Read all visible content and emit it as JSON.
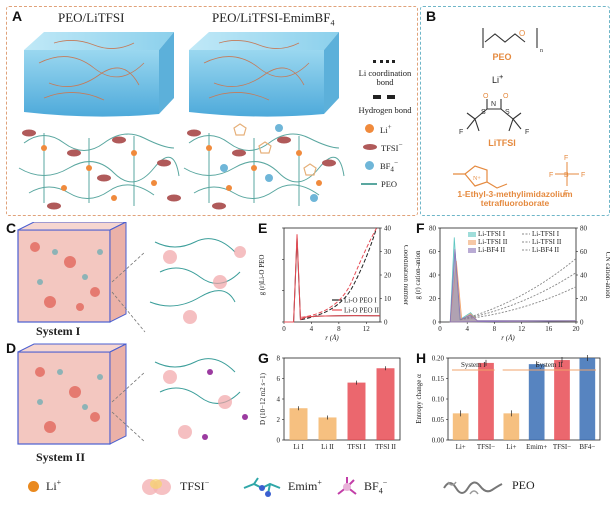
{
  "panels": {
    "A": {
      "label": "A",
      "left_title": "PEO/LiTFSI",
      "right_title": "PEO/LiTFSI-EmimBF",
      "right_title_sub": "4",
      "legend": {
        "coord": "Li coordination bond",
        "hbond": "Hydrogen bond",
        "li": "Li",
        "li_sup": "+",
        "tfsi": "TFSI",
        "tfsi_sup": "−",
        "bf4": "BF",
        "bf4_sub": "4",
        "bf4_sup": "−",
        "peo": "PEO"
      }
    },
    "B": {
      "label": "B",
      "peo": "PEO",
      "li": "Li",
      "li_sup": "+",
      "litfsi": "LiTFSI",
      "il_line1": "1-Ethyl-3-methylimidazolium",
      "il_line2": "tetrafluoroborate"
    },
    "C": {
      "label": "C",
      "system": "System I"
    },
    "D": {
      "label": "D",
      "system": "System II"
    },
    "E": {
      "label": "E"
    },
    "F": {
      "label": "F"
    },
    "G": {
      "label": "G"
    },
    "H": {
      "label": "H"
    }
  },
  "bottom_legend": {
    "li": "Li",
    "li_sup": "+",
    "tfsi": "TFSI",
    "tfsi_sup": "−",
    "emim": "Emim",
    "emim_sup": "+",
    "bf4": "BF",
    "bf4_sub": "4",
    "bf4_sup": "−",
    "peo": "PEO"
  },
  "colors": {
    "orange": "#f08a3c",
    "red": "#e74c55",
    "teal": "#5fc7c2",
    "blue": "#3a6fb5",
    "pink": "#f2a5a8",
    "purple": "#8a73b8"
  },
  "chart_data": [
    {
      "id": "E",
      "type": "line",
      "xlabel": "r (Å)",
      "ylabel_left": "g (r)Li-O",
      "ylabel_left_sub": "PEO",
      "ylabel_right": "Coordination number",
      "xlim": [
        0,
        14
      ],
      "ylim_left": [
        0,
        15
      ],
      "ylim_right": [
        0,
        40
      ],
      "xticks": [
        "0",
        "4",
        "8",
        "12"
      ],
      "yticks_right": [
        "0",
        "10",
        "20",
        "30",
        "40"
      ],
      "yticks_left": [
        "0",
        "5",
        "10",
        "15"
      ],
      "series": [
        {
          "name": "Li-O",
          "name_sub": "PEO",
          "name_tail": "I",
          "color": "#222222",
          "peak_x": 1.9,
          "peak_y": 13.5
        },
        {
          "name": "Li-O",
          "name_sub": "PEO",
          "name_tail": "II",
          "color": "#e74c55",
          "peak_x": 1.9,
          "peak_y": 14.0
        }
      ]
    },
    {
      "id": "F",
      "type": "line",
      "xlabel": "r (Å)",
      "ylabel_left": "g (r) cation-anion",
      "ylabel_right": "CN cation-anion",
      "xlim": [
        0,
        20
      ],
      "ylim_left": [
        0,
        80
      ],
      "ylim_right": [
        0,
        80
      ],
      "xticks": [
        "0",
        "4",
        "8",
        "12",
        "16",
        "20"
      ],
      "yticks_left": [
        "0",
        "20",
        "40",
        "60",
        "80"
      ],
      "yticks_right": [
        "0",
        "20",
        "40",
        "60",
        "80"
      ],
      "legend_left": [
        {
          "label": "Li-TFSI I",
          "color": "#5fc7c2"
        },
        {
          "label": "Li-TFSI II",
          "color": "#f0a36b"
        },
        {
          "label": "Li-BF",
          "label_sub": "4",
          "label_tail": " II",
          "color": "#8a73b8"
        }
      ],
      "legend_right": [
        {
          "label": "Li-TFSI I"
        },
        {
          "label": "Li-TFSI II"
        },
        {
          "label": "Li-BF",
          "label_sub": "4",
          "label_tail": " II"
        }
      ]
    },
    {
      "id": "G",
      "type": "bar",
      "categories": [
        "Li I",
        "Li II",
        "TFSI I",
        "TFSI II"
      ],
      "values": [
        3.1,
        2.2,
        5.6,
        7.0
      ],
      "colors": [
        "#f4b56a",
        "#f4b56a",
        "#e74c55",
        "#e74c55"
      ],
      "ylabel": "D (10",
      "ylabel_sup": "−12",
      "ylabel_tail": " m",
      "ylabel_sup2": "2",
      "ylabel_tail2": " s",
      "ylabel_sup3": "−1",
      "ylabel_end": ")",
      "ylim": [
        0,
        8
      ],
      "yticks": [
        "0",
        "2",
        "4",
        "6",
        "8"
      ]
    },
    {
      "id": "H",
      "type": "bar",
      "categories": [
        "Li+",
        "TFSI−",
        "Li+",
        "Emim+",
        "TFSI−",
        "BF4−"
      ],
      "values": [
        0.065,
        0.188,
        0.065,
        0.185,
        0.195,
        0.2
      ],
      "colors": [
        "#f4b56a",
        "#e74c55",
        "#f4b56a",
        "#3a6fb5",
        "#e74c55",
        "#3a6fb5"
      ],
      "ylabel": "Entropy change α",
      "ylim": [
        0,
        0.2
      ],
      "yticks": [
        "0.00",
        "0.05",
        "0.10",
        "0.15",
        "0.20"
      ],
      "group_labels": [
        "System I",
        "System II"
      ]
    }
  ]
}
